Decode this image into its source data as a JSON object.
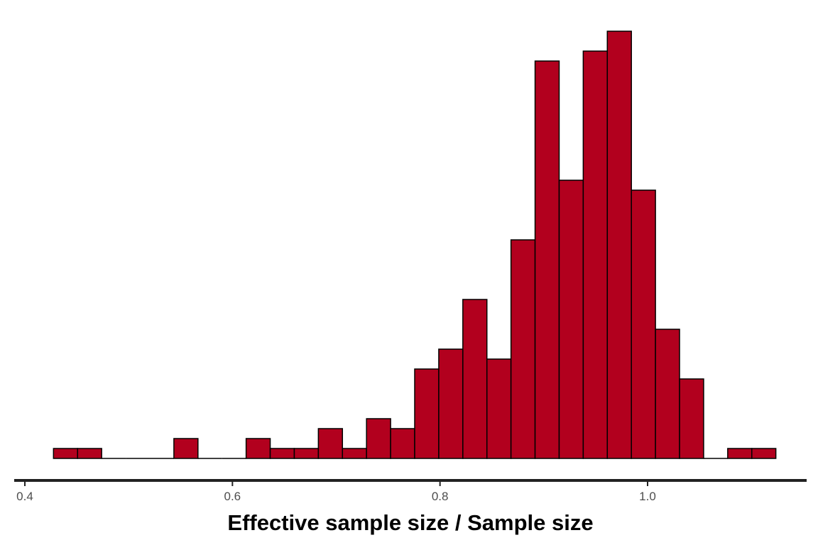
{
  "chart_data": {
    "type": "bar",
    "subtype": "histogram",
    "title": "",
    "xlabel": "Effective sample size / Sample size",
    "ylabel": "",
    "xlim": [
      0.4,
      1.15
    ],
    "ylim": [
      0,
      43
    ],
    "bin_width": 0.0232,
    "bins": [
      {
        "x0": 0.4276,
        "count": 1
      },
      {
        "x0": 0.4508,
        "count": 1
      },
      {
        "x0": 0.474,
        "count": 0
      },
      {
        "x0": 0.4972,
        "count": 0
      },
      {
        "x0": 0.5204,
        "count": 0
      },
      {
        "x0": 0.5436,
        "count": 2
      },
      {
        "x0": 0.5668,
        "count": 0
      },
      {
        "x0": 0.59,
        "count": 0
      },
      {
        "x0": 0.6132,
        "count": 2
      },
      {
        "x0": 0.6364,
        "count": 1
      },
      {
        "x0": 0.6596,
        "count": 1
      },
      {
        "x0": 0.6828,
        "count": 3
      },
      {
        "x0": 0.706,
        "count": 1
      },
      {
        "x0": 0.7292,
        "count": 4
      },
      {
        "x0": 0.7524,
        "count": 3
      },
      {
        "x0": 0.7756,
        "count": 9
      },
      {
        "x0": 0.7988,
        "count": 11
      },
      {
        "x0": 0.822,
        "count": 16
      },
      {
        "x0": 0.8452,
        "count": 10
      },
      {
        "x0": 0.8684,
        "count": 22
      },
      {
        "x0": 0.8916,
        "count": 40
      },
      {
        "x0": 0.9148,
        "count": 28
      },
      {
        "x0": 0.938,
        "count": 41
      },
      {
        "x0": 0.9612,
        "count": 43
      },
      {
        "x0": 0.9844,
        "count": 27
      },
      {
        "x0": 1.0076,
        "count": 13
      },
      {
        "x0": 1.0308,
        "count": 8
      },
      {
        "x0": 1.054,
        "count": 0
      },
      {
        "x0": 1.0772,
        "count": 1
      },
      {
        "x0": 1.1004,
        "count": 1
      }
    ],
    "xticks": [
      {
        "value": 0.4,
        "label": "0.4"
      },
      {
        "value": 0.6,
        "label": "0.6"
      },
      {
        "value": 0.8,
        "label": "0.8"
      },
      {
        "value": 1.0,
        "label": "1.0"
      }
    ],
    "grid": false,
    "legend": "none",
    "colors": {
      "fill": "#b2001e",
      "stroke": "#000000",
      "axis": "#222222",
      "tick_text": "#4d4d4d"
    }
  }
}
